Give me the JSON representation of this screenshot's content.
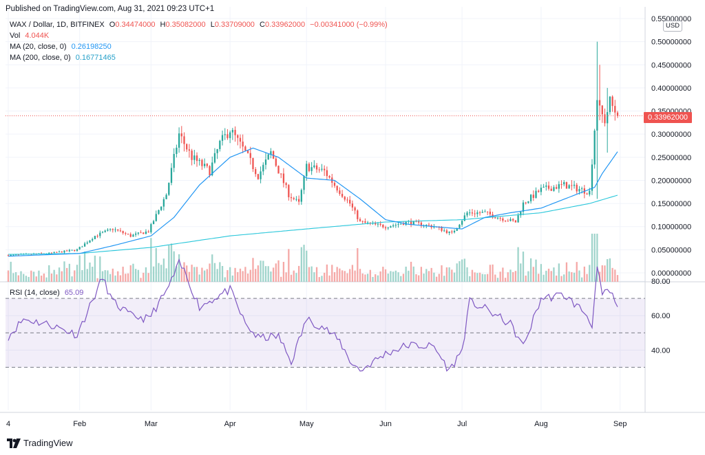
{
  "header": {
    "published": "Published on TradingView.com, Aug 31, 2021 09:23 UTC+1"
  },
  "legend": {
    "symbol": "WAX / Dollar, 1D, BITFINEX",
    "o_label": "O",
    "o_value": "0.34474000",
    "h_label": "H",
    "h_value": "0.35082000",
    "l_label": "L",
    "l_value": "0.33709000",
    "c_label": "C",
    "c_value": "0.33962000",
    "change": "−0.00341000 (−0.99%)",
    "vol_label": "Vol",
    "vol_value": "4.044K",
    "ma20_label": "MA (20, close, 0)",
    "ma20_value": "0.26198250",
    "ma200_label": "MA (200, close, 0)",
    "ma200_value": "0.16771465",
    "rsi_label": "RSI (14, close)",
    "rsi_value": "65.09"
  },
  "currency_button": "USD",
  "last_price_tag": "0.33962000",
  "brand": "TradingView",
  "colors": {
    "up": "#26a69a",
    "down": "#ef5350",
    "ma20": "#2196f3",
    "ma200": "#26c6da",
    "rsi": "#7e57c2",
    "rsi_band": "#7e57c2",
    "vol_up": "#9fd4cb",
    "vol_down": "#f5a8a6"
  },
  "chart_data": [
    {
      "type": "candlestick",
      "series_name": "WAX / Dollar",
      "x_tick_labels": [
        "4",
        "Feb",
        "Mar",
        "Apr",
        "May",
        "Jun",
        "Jul",
        "Aug",
        "Sep"
      ],
      "y_tick_labels": [
        "0.55000000",
        "0.50000000",
        "0.45000000",
        "0.40000000",
        "0.35000000",
        "0.30000000",
        "0.25000000",
        "0.20000000",
        "0.15000000",
        "0.10000000",
        "0.05000000",
        "0.00000000"
      ],
      "ylim": [
        0,
        0.55
      ],
      "last_close": 0.33962,
      "keypoints_close": [
        [
          "Jan 4",
          0.038
        ],
        [
          "Jan 20",
          0.042
        ],
        [
          "Jan 31",
          0.05
        ],
        [
          "Feb 7",
          0.08
        ],
        [
          "Feb 14",
          0.095
        ],
        [
          "Feb 21",
          0.08
        ],
        [
          "Feb 28",
          0.09
        ],
        [
          "Mar 7",
          0.17
        ],
        [
          "Mar 12",
          0.3
        ],
        [
          "Mar 17",
          0.25
        ],
        [
          "Mar 24",
          0.22
        ],
        [
          "Mar 28",
          0.28
        ],
        [
          "Apr 1",
          0.31
        ],
        [
          "Apr 7",
          0.26
        ],
        [
          "Apr 12",
          0.21
        ],
        [
          "Apr 17",
          0.26
        ],
        [
          "Apr 24",
          0.17
        ],
        [
          "Apr 28",
          0.15
        ],
        [
          "May 1",
          0.23
        ],
        [
          "May 8",
          0.22
        ],
        [
          "May 12",
          0.19
        ],
        [
          "May 18",
          0.15
        ],
        [
          "May 22",
          0.11
        ],
        [
          "Jun 1",
          0.1
        ],
        [
          "Jun 10",
          0.11
        ],
        [
          "Jun 20",
          0.1
        ],
        [
          "Jun 27",
          0.085
        ],
        [
          "Jul 3",
          0.13
        ],
        [
          "Jul 10",
          0.13
        ],
        [
          "Jul 15",
          0.12
        ],
        [
          "Jul 22",
          0.11
        ],
        [
          "Jul 25",
          0.15
        ],
        [
          "Aug 1",
          0.18
        ],
        [
          "Aug 10",
          0.19
        ],
        [
          "Aug 20",
          0.175
        ],
        [
          "Aug 23",
          0.38
        ],
        [
          "Aug 24",
          0.35
        ],
        [
          "Aug 26",
          0.33
        ],
        [
          "Aug 28",
          0.37
        ],
        [
          "Aug 31",
          0.33962
        ]
      ],
      "keypoints_ma20": [
        [
          "Jan 4",
          0.036
        ],
        [
          "Feb 1",
          0.042
        ],
        [
          "Feb 15",
          0.06
        ],
        [
          "Mar 1",
          0.08
        ],
        [
          "Mar 10",
          0.12
        ],
        [
          "Mar 20",
          0.19
        ],
        [
          "Apr 1",
          0.25
        ],
        [
          "Apr 10",
          0.27
        ],
        [
          "Apr 20",
          0.25
        ],
        [
          "May 1",
          0.205
        ],
        [
          "May 12",
          0.2
        ],
        [
          "May 22",
          0.16
        ],
        [
          "Jun 1",
          0.115
        ],
        [
          "Jun 10",
          0.105
        ],
        [
          "Jun 20",
          0.1
        ],
        [
          "Jul 1",
          0.095
        ],
        [
          "Jul 10",
          0.12
        ],
        [
          "Jul 20",
          0.13
        ],
        [
          "Aug 1",
          0.14
        ],
        [
          "Aug 15",
          0.17
        ],
        [
          "Aug 22",
          0.185
        ],
        [
          "Aug 25",
          0.215
        ],
        [
          "Aug 31",
          0.262
        ]
      ],
      "keypoints_ma200": [
        [
          "Jan 4",
          0.04
        ],
        [
          "Feb 1",
          0.042
        ],
        [
          "Mar 1",
          0.055
        ],
        [
          "Apr 1",
          0.08
        ],
        [
          "May 1",
          0.095
        ],
        [
          "Jun 1",
          0.11
        ],
        [
          "Jul 1",
          0.115
        ],
        [
          "Aug 1",
          0.13
        ],
        [
          "Aug 20",
          0.15
        ],
        [
          "Aug 31",
          0.168
        ]
      ]
    },
    {
      "type": "line",
      "series_name": "RSI (14, close)",
      "y_tick_labels": [
        "80.00",
        "60.00",
        "40.00"
      ],
      "band": [
        30,
        70
      ],
      "mid": 50,
      "last_value": 65.09,
      "keypoints": [
        [
          "Jan 4",
          48
        ],
        [
          "Jan 10",
          58
        ],
        [
          "Jan 20",
          55
        ],
        [
          "Jan 31",
          49
        ],
        [
          "Feb 7",
          72
        ],
        [
          "Feb 10",
          82
        ],
        [
          "Feb 14",
          68
        ],
        [
          "Feb 21",
          60
        ],
        [
          "Feb 28",
          58
        ],
        [
          "Mar 7",
          74
        ],
        [
          "Mar 12",
          90
        ],
        [
          "Mar 14",
          86
        ],
        [
          "Mar 20",
          65
        ],
        [
          "Mar 28",
          72
        ],
        [
          "Apr 1",
          75
        ],
        [
          "Apr 7",
          55
        ],
        [
          "Apr 12",
          47
        ],
        [
          "Apr 20",
          48
        ],
        [
          "Apr 25",
          33
        ],
        [
          "May 1",
          58
        ],
        [
          "May 8",
          53
        ],
        [
          "May 14",
          45
        ],
        [
          "May 18",
          34
        ],
        [
          "May 22",
          28
        ],
        [
          "Jun 1",
          38
        ],
        [
          "Jun 10",
          43
        ],
        [
          "Jun 20",
          42
        ],
        [
          "Jun 26",
          28
        ],
        [
          "Jul 1",
          40
        ],
        [
          "Jul 4",
          68
        ],
        [
          "Jul 10",
          64
        ],
        [
          "Jul 20",
          55
        ],
        [
          "Jul 25",
          42
        ],
        [
          "Aug 1",
          70
        ],
        [
          "Aug 10",
          72
        ],
        [
          "Aug 18",
          62
        ],
        [
          "Aug 21",
          55
        ],
        [
          "Aug 23",
          87
        ],
        [
          "Aug 25",
          72
        ],
        [
          "Aug 28",
          74
        ],
        [
          "Aug 31",
          65.09
        ]
      ]
    }
  ]
}
